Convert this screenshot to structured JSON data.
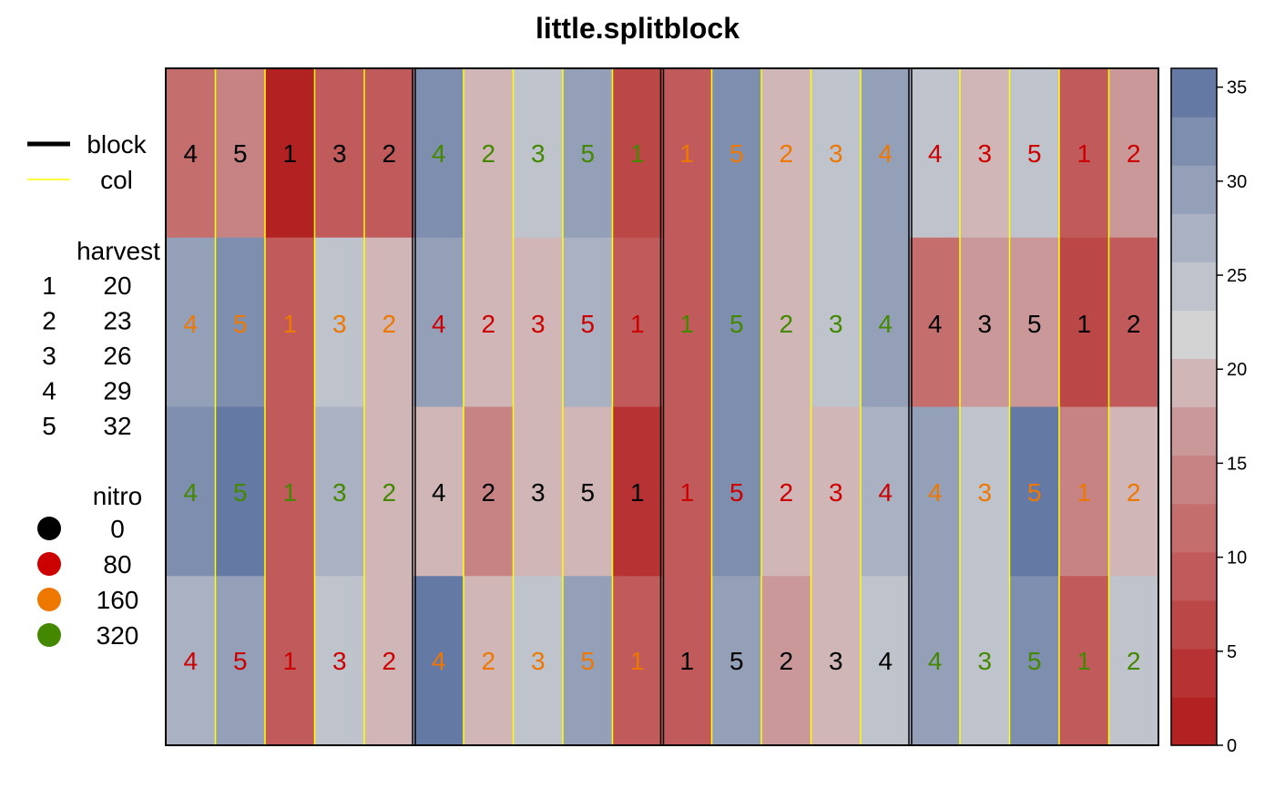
{
  "chart_data": {
    "type": "heatmap",
    "title": "little.splitblock",
    "legend": {
      "lines": [
        {
          "label": "block",
          "color": "#000000"
        },
        {
          "label": "col",
          "color": "#FFFF00"
        }
      ],
      "harvest": {
        "title": "harvest",
        "entries": [
          {
            "key": "1",
            "value": "20"
          },
          {
            "key": "2",
            "value": "23"
          },
          {
            "key": "3",
            "value": "26"
          },
          {
            "key": "4",
            "value": "29"
          },
          {
            "key": "5",
            "value": "32"
          }
        ]
      },
      "nitro": {
        "title": "nitro",
        "entries": [
          {
            "label": "0",
            "color": "#000000"
          },
          {
            "label": "80",
            "color": "#CC0000"
          },
          {
            "label": "160",
            "color": "#EE7700"
          },
          {
            "label": "320",
            "color": "#448800"
          }
        ]
      }
    },
    "colorbar": {
      "range": [
        0,
        36
      ],
      "ticks": [
        "0",
        "5",
        "10",
        "15",
        "20",
        "25",
        "30",
        "35"
      ],
      "colors": [
        "#B22222",
        "#B73333",
        "#BC4747",
        "#C15B5B",
        "#C46E6E",
        "#C78383",
        "#CA9898",
        "#D0B6B6",
        "#D3D3D3",
        "#BEC3CC",
        "#A9B1C2",
        "#93A0B8",
        "#7E8EAE",
        "#6579A5"
      ]
    },
    "grid": {
      "rows": 4,
      "blocks": 4,
      "cols_per_block": 5,
      "cells": [
        [
          {
            "label": "4",
            "nitro": "0",
            "value": 10.5
          },
          {
            "label": "5",
            "nitro": "0",
            "value": 14.5
          },
          {
            "label": "1",
            "nitro": "0",
            "value": 1.0
          },
          {
            "label": "3",
            "nitro": "0",
            "value": 10.0
          },
          {
            "label": "2",
            "nitro": "0",
            "value": 9.5
          },
          {
            "label": "4",
            "nitro": "320",
            "value": 32.0
          },
          {
            "label": "2",
            "nitro": "320",
            "value": 18.0
          },
          {
            "label": "3",
            "nitro": "320",
            "value": 24.0
          },
          {
            "label": "5",
            "nitro": "320",
            "value": 28.5
          },
          {
            "label": "1",
            "nitro": "320",
            "value": 7.0
          },
          {
            "label": "1",
            "nitro": "160",
            "value": 10.0
          },
          {
            "label": "5",
            "nitro": "160",
            "value": 32.0
          },
          {
            "label": "2",
            "nitro": "160",
            "value": 18.0
          },
          {
            "label": "3",
            "nitro": "160",
            "value": 24.0
          },
          {
            "label": "4",
            "nitro": "160",
            "value": 29.0
          },
          {
            "label": "4",
            "nitro": "80",
            "value": 24.0
          },
          {
            "label": "3",
            "nitro": "80",
            "value": 20.5
          },
          {
            "label": "5",
            "nitro": "80",
            "value": 24.0
          },
          {
            "label": "1",
            "nitro": "80",
            "value": 10.0
          },
          {
            "label": "2",
            "nitro": "80",
            "value": 16.0
          }
        ],
        [
          {
            "label": "4",
            "nitro": "160",
            "value": 28.5
          },
          {
            "label": "5",
            "nitro": "160",
            "value": 32.0
          },
          {
            "label": "1",
            "nitro": "160",
            "value": 10.0
          },
          {
            "label": "3",
            "nitro": "160",
            "value": 24.0
          },
          {
            "label": "2",
            "nitro": "160",
            "value": 18.0
          },
          {
            "label": "4",
            "nitro": "80",
            "value": 28.5
          },
          {
            "label": "2",
            "nitro": "80",
            "value": 18.0
          },
          {
            "label": "3",
            "nitro": "80",
            "value": 20.5
          },
          {
            "label": "5",
            "nitro": "80",
            "value": 26.5
          },
          {
            "label": "1",
            "nitro": "80",
            "value": 10.0
          },
          {
            "label": "1",
            "nitro": "320",
            "value": 10.0
          },
          {
            "label": "5",
            "nitro": "320",
            "value": 32.0
          },
          {
            "label": "2",
            "nitro": "320",
            "value": 18.0
          },
          {
            "label": "3",
            "nitro": "320",
            "value": 24.0
          },
          {
            "label": "4",
            "nitro": "320",
            "value": 29.0
          },
          {
            "label": "4",
            "nitro": "0",
            "value": 12.5
          },
          {
            "label": "3",
            "nitro": "0",
            "value": 16.0
          },
          {
            "label": "5",
            "nitro": "0",
            "value": 16.0
          },
          {
            "label": "1",
            "nitro": "0",
            "value": 7.0
          },
          {
            "label": "2",
            "nitro": "0",
            "value": 10.0
          }
        ],
        [
          {
            "label": "4",
            "nitro": "320",
            "value": 32.0
          },
          {
            "label": "5",
            "nitro": "320",
            "value": 35.0
          },
          {
            "label": "1",
            "nitro": "320",
            "value": 10.0
          },
          {
            "label": "3",
            "nitro": "320",
            "value": 26.5
          },
          {
            "label": "2",
            "nitro": "320",
            "value": 18.0
          },
          {
            "label": "4",
            "nitro": "0",
            "value": 20.5
          },
          {
            "label": "2",
            "nitro": "0",
            "value": 13.0
          },
          {
            "label": "3",
            "nitro": "0",
            "value": 18.0
          },
          {
            "label": "5",
            "nitro": "0",
            "value": 18.0
          },
          {
            "label": "1",
            "nitro": "0",
            "value": 4.0
          },
          {
            "label": "1",
            "nitro": "80",
            "value": 10.0
          },
          {
            "label": "5",
            "nitro": "80",
            "value": 32.0
          },
          {
            "label": "2",
            "nitro": "80",
            "value": 18.0
          },
          {
            "label": "3",
            "nitro": "80",
            "value": 20.5
          },
          {
            "label": "4",
            "nitro": "80",
            "value": 26.5
          },
          {
            "label": "4",
            "nitro": "160",
            "value": 28.5
          },
          {
            "label": "3",
            "nitro": "160",
            "value": 24.0
          },
          {
            "label": "5",
            "nitro": "160",
            "value": 35.0
          },
          {
            "label": "1",
            "nitro": "160",
            "value": 13.0
          },
          {
            "label": "2",
            "nitro": "160",
            "value": 20.5
          }
        ],
        [
          {
            "label": "4",
            "nitro": "80",
            "value": 26.5
          },
          {
            "label": "5",
            "nitro": "80",
            "value": 28.5
          },
          {
            "label": "1",
            "nitro": "80",
            "value": 10.0
          },
          {
            "label": "3",
            "nitro": "80",
            "value": 24.0
          },
          {
            "label": "2",
            "nitro": "80",
            "value": 18.0
          },
          {
            "label": "4",
            "nitro": "160",
            "value": 35.0
          },
          {
            "label": "2",
            "nitro": "160",
            "value": 18.0
          },
          {
            "label": "3",
            "nitro": "160",
            "value": 24.0
          },
          {
            "label": "5",
            "nitro": "160",
            "value": 28.5
          },
          {
            "label": "1",
            "nitro": "160",
            "value": 10.0
          },
          {
            "label": "1",
            "nitro": "0",
            "value": 10.0
          },
          {
            "label": "5",
            "nitro": "0",
            "value": 28.5
          },
          {
            "label": "2",
            "nitro": "0",
            "value": 16.0
          },
          {
            "label": "3",
            "nitro": "0",
            "value": 20.5
          },
          {
            "label": "4",
            "nitro": "0",
            "value": 24.0
          },
          {
            "label": "4",
            "nitro": "320",
            "value": 28.5
          },
          {
            "label": "3",
            "nitro": "320",
            "value": 24.0
          },
          {
            "label": "5",
            "nitro": "320",
            "value": 32.0
          },
          {
            "label": "1",
            "nitro": "320",
            "value": 10.0
          },
          {
            "label": "2",
            "nitro": "320",
            "value": 24.0
          }
        ]
      ]
    }
  }
}
